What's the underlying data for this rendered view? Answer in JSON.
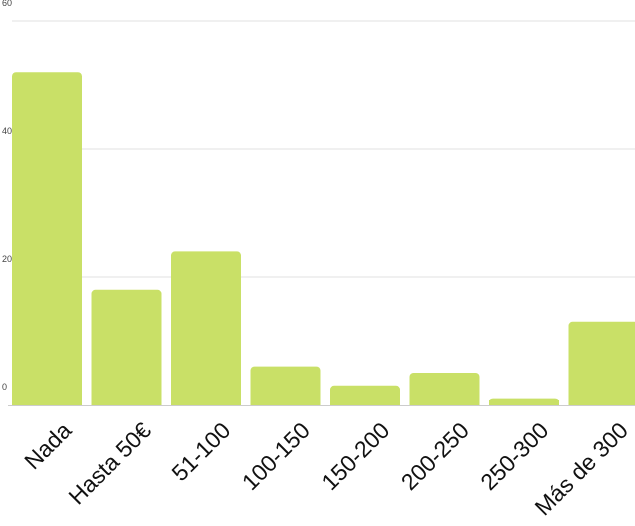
{
  "chart_data": {
    "type": "bar",
    "title": "",
    "xlabel": "",
    "ylabel": "",
    "categories": [
      "Nada",
      "Hasta 50€",
      "51-100",
      "100-150",
      "150-200",
      "200-250",
      "250-300",
      "Más de 300"
    ],
    "values": [
      52,
      18,
      24,
      6,
      3,
      5,
      1,
      13
    ],
    "ylim": [
      0,
      60
    ],
    "yticks": [
      "0",
      "20",
      "40",
      "60"
    ],
    "grid": true,
    "legend": "none",
    "colors": {
      "bar": "#c9e067",
      "grid": "#e0e0e0",
      "axis": "#cccccc"
    }
  }
}
